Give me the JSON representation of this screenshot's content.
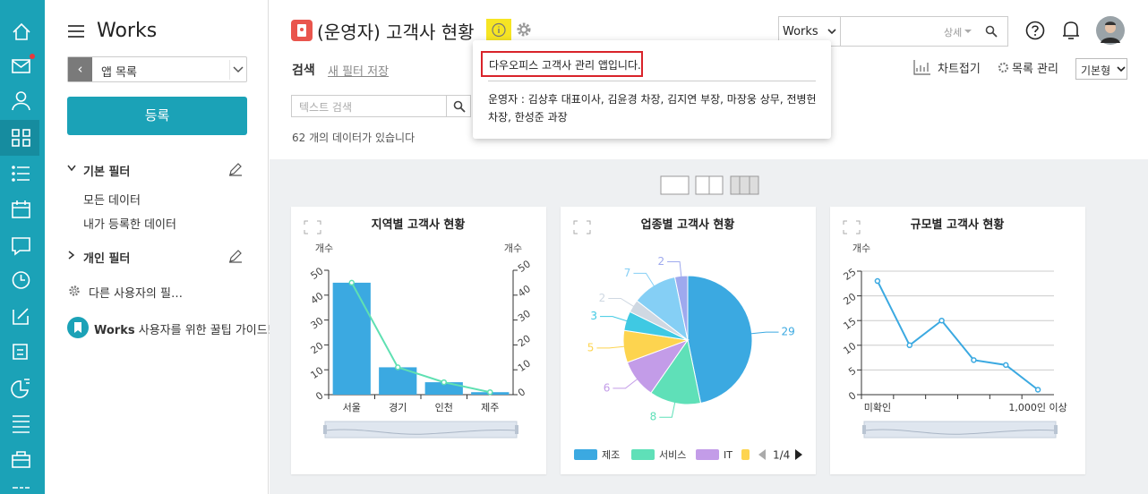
{
  "sidebar": {
    "title": "Works",
    "app_list": "앱 목록",
    "register": "등록",
    "basic_filter": "기본 필터",
    "filters": [
      "모든 데이터",
      "내가 등록한 데이터"
    ],
    "personal_filter": "개인 필터",
    "other_users": "다른 사용자의 필…",
    "guide_brand": "Works",
    "guide": "사용자를 위한 꿀팁 가이드!"
  },
  "header": {
    "title": "(운영자) 고객사 현황",
    "search_scope": "Works",
    "detail": "상세",
    "search": "검색",
    "save_filter": "새 필터 저장",
    "fold_chart": "차트접기",
    "list_manage": "목록 관리",
    "view_type": "기본형",
    "search_placeholder": "텍스트 검색",
    "count_text": "62 개의 데이터가 있습니다"
  },
  "popup": {
    "desc": "다우오피스 고객사 관리 앱입니다.",
    "operators": "운영자 : 김상후 대표이사, 김윤경 차장, 김지연 부장, 마장웅 상무, 전병헌 차장, 한성준 과장"
  },
  "chart_data": [
    {
      "type": "combo",
      "title": "지역별 고객사 현황",
      "y_label": "개수",
      "y2_label": "개수",
      "categories": [
        "서울",
        "경기",
        "인천",
        "제주"
      ],
      "series": [
        {
          "type": "bar",
          "color": "#3ba9e1",
          "values": [
            45,
            11,
            5,
            1
          ]
        },
        {
          "type": "line",
          "color": "#5fe0b2",
          "axis": "y2",
          "values": [
            45,
            11,
            5,
            1
          ]
        }
      ],
      "ylim": [
        0,
        50
      ],
      "yticks": [
        0,
        10,
        20,
        30,
        40,
        50
      ],
      "y2lim": [
        0,
        50
      ],
      "y2ticks": [
        0,
        10,
        20,
        30,
        40,
        50
      ],
      "grid": false
    },
    {
      "type": "pie",
      "title": "업종별 고객사 현황",
      "categories": [
        "제조",
        "서비스",
        "IT",
        null,
        null,
        null,
        null,
        null
      ],
      "values": [
        29,
        8,
        6,
        5,
        3,
        2,
        7,
        2
      ],
      "colors": [
        "#3ba9e1",
        "#5fe0b8",
        "#c39ce8",
        "#fdd44f",
        "#3fc9e3",
        "#cfd8e2",
        "#85cff5",
        "#9ea9ee"
      ],
      "legend_page": "1/4"
    },
    {
      "type": "line",
      "title": "규모별 고객사 현황",
      "y_label": "개수",
      "categories": [
        "미확인",
        null,
        null,
        null,
        null,
        "1,000인 이상"
      ],
      "values": [
        23,
        10,
        15,
        7,
        6,
        1
      ],
      "color": "#3ba9e1",
      "ylim": [
        0,
        25
      ],
      "yticks": [
        0,
        5,
        10,
        15,
        20,
        25
      ],
      "grid": true
    }
  ]
}
